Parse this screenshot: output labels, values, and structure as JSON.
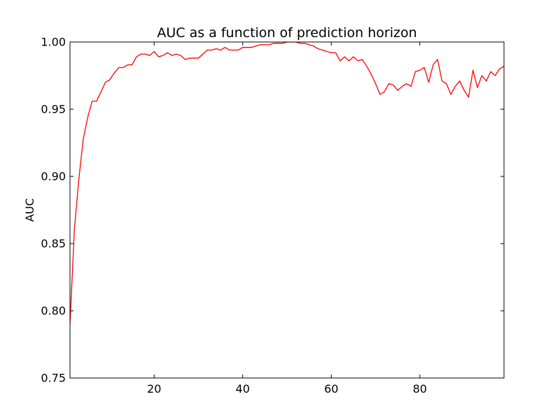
{
  "chart_data": {
    "type": "line",
    "title": "AUC as a function of prediction horizon",
    "xlabel": "",
    "ylabel": "AUC",
    "xlim": [
      1,
      99
    ],
    "ylim": [
      0.75,
      1.0
    ],
    "xticks": [
      20,
      40,
      60,
      80
    ],
    "yticks": [
      0.75,
      0.8,
      0.85,
      0.9,
      0.95,
      1.0
    ],
    "ytick_labels": [
      "0.75",
      "0.80",
      "0.85",
      "0.90",
      "0.95",
      "1.00"
    ],
    "xtick_labels": [
      "20",
      "40",
      "60",
      "80"
    ],
    "grid": false,
    "series": [
      {
        "color": "#ff0000",
        "x": [
          1,
          2,
          3,
          4,
          5,
          6,
          7,
          8,
          9,
          10,
          11,
          12,
          13,
          14,
          15,
          16,
          17,
          18,
          19,
          20,
          21,
          22,
          23,
          24,
          25,
          26,
          27,
          28,
          29,
          30,
          31,
          32,
          33,
          34,
          35,
          36,
          37,
          38,
          39,
          40,
          41,
          42,
          43,
          44,
          45,
          46,
          47,
          48,
          49,
          50,
          51,
          52,
          53,
          54,
          55,
          56,
          57,
          58,
          59,
          60,
          61,
          62,
          63,
          64,
          65,
          66,
          67,
          68,
          69,
          70,
          71,
          72,
          73,
          74,
          75,
          76,
          77,
          78,
          79,
          80,
          81,
          82,
          83,
          84,
          85,
          86,
          87,
          88,
          89,
          90,
          91,
          92,
          93,
          94,
          95,
          96,
          97,
          98,
          99
        ],
        "y": [
          0.79,
          0.861,
          0.898,
          0.928,
          0.944,
          0.956,
          0.956,
          0.963,
          0.97,
          0.972,
          0.977,
          0.981,
          0.981,
          0.983,
          0.983,
          0.989,
          0.991,
          0.991,
          0.99,
          0.993,
          0.989,
          0.99,
          0.992,
          0.99,
          0.991,
          0.99,
          0.987,
          0.988,
          0.988,
          0.988,
          0.991,
          0.994,
          0.994,
          0.995,
          0.994,
          0.996,
          0.994,
          0.994,
          0.994,
          0.996,
          0.996,
          0.996,
          0.997,
          0.998,
          0.998,
          0.998,
          0.999,
          0.999,
          0.999,
          1.0,
          1.0,
          1.0,
          0.999,
          0.999,
          0.998,
          0.997,
          0.995,
          0.994,
          0.993,
          0.992,
          0.992,
          0.986,
          0.989,
          0.986,
          0.989,
          0.986,
          0.987,
          0.982,
          0.976,
          0.969,
          0.961,
          0.963,
          0.969,
          0.968,
          0.964,
          0.967,
          0.969,
          0.967,
          0.978,
          0.979,
          0.981,
          0.97,
          0.983,
          0.987,
          0.971,
          0.969,
          0.961,
          0.967,
          0.971,
          0.964,
          0.959,
          0.979,
          0.966,
          0.975,
          0.971,
          0.978,
          0.975,
          0.98,
          0.982
        ]
      }
    ]
  }
}
